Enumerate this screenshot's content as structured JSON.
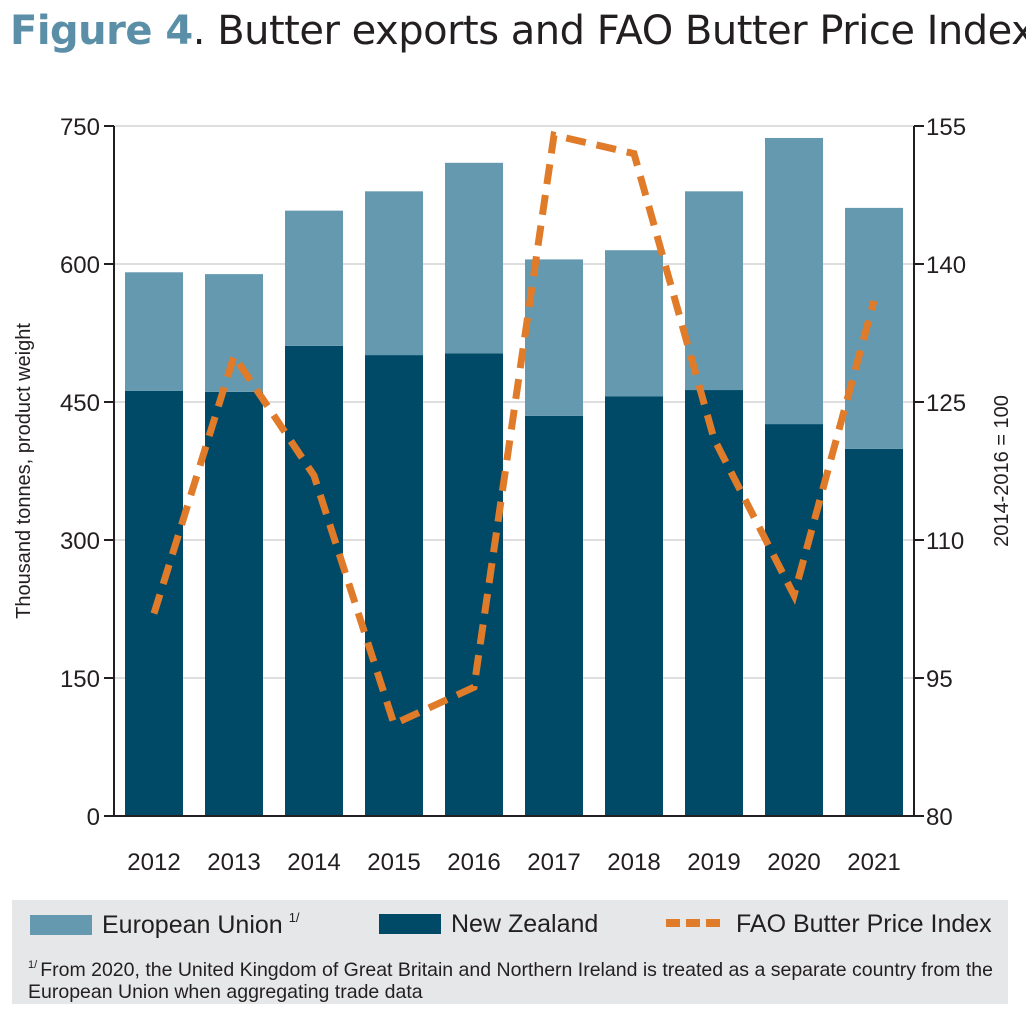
{
  "title": {
    "figure": "Figure 4",
    "rest": ". Butter exports and FAO Butter Price Index"
  },
  "chart_data": {
    "type": "bar",
    "stacked": true,
    "categories": [
      "2012",
      "2013",
      "2014",
      "2015",
      "2016",
      "2017",
      "2018",
      "2019",
      "2020",
      "2021"
    ],
    "series": [
      {
        "name": "New Zealand",
        "axis": "left",
        "color": "#004a68",
        "values": [
          462,
          461,
          511,
          501,
          503,
          435,
          456,
          463,
          426,
          399
        ]
      },
      {
        "name": "European Union",
        "axis": "left",
        "color": "#6599b0",
        "values": [
          129,
          128,
          147,
          178,
          207,
          170,
          159,
          216,
          311,
          262
        ]
      },
      {
        "name": "FAO Butter Price Index",
        "type": "line",
        "axis": "right",
        "style": "dashed",
        "color": "#e07b2a",
        "values": [
          102,
          130,
          117,
          90,
          94,
          154,
          152,
          121,
          104,
          136
        ]
      }
    ],
    "ylabel": "Thousand tonnes, product weight",
    "ylabel_right": "2014-2016 = 100",
    "ylim": [
      0,
      750
    ],
    "yticks": [
      "0",
      "150",
      "300",
      "450",
      "600",
      "750"
    ],
    "ylim_right": [
      80,
      155
    ],
    "yticks_right": [
      "80",
      "95",
      "110",
      "125",
      "140",
      "155"
    ],
    "grid": true,
    "legend_position": "bottom"
  },
  "legend": {
    "eu": "European Union",
    "eu_sup": "1/",
    "nz": "New Zealand",
    "fao": "FAO Butter Price Index"
  },
  "footnote": {
    "mark": "1/",
    "text": "From 2020, the United Kingdom of Great Britain and Northern Ireland is treated as a separate country from the European Union when aggregating trade data"
  }
}
